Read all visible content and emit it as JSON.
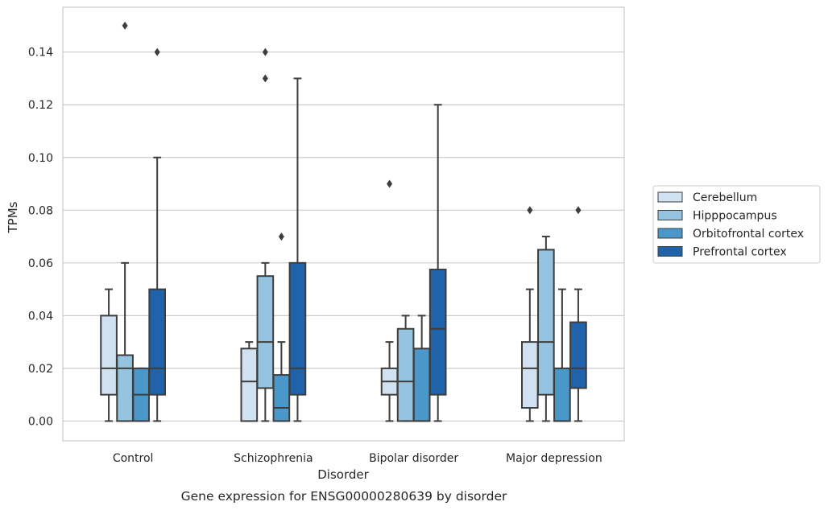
{
  "chart_data": {
    "type": "box",
    "xlabel": "Disorder",
    "ylabel": "TPMs",
    "caption": "Gene expression for ENSG00000280639 by disorder",
    "categories": [
      "Control",
      "Schizophrenia",
      "Bipolar disorder",
      "Major depression"
    ],
    "ylim": [
      -0.0075,
      0.157
    ],
    "yticks": [
      0.0,
      0.02,
      0.04,
      0.06,
      0.08,
      0.1,
      0.12,
      0.14
    ],
    "ytick_labels": [
      "0.00",
      "0.02",
      "0.04",
      "0.06",
      "0.08",
      "0.10",
      "0.12",
      "0.14"
    ],
    "grid": "horizontal",
    "legend_position": "right",
    "series": [
      {
        "name": "Cerebellum",
        "color": "#d0e1f2",
        "boxes": [
          {
            "whislo": 0.0,
            "q1": 0.01,
            "med": 0.02,
            "q3": 0.04,
            "whishi": 0.05,
            "fliers": []
          },
          {
            "whislo": 0.0,
            "q1": 0.0,
            "med": 0.015,
            "q3": 0.0275,
            "whishi": 0.03,
            "fliers": []
          },
          {
            "whislo": 0.0,
            "q1": 0.01,
            "med": 0.015,
            "q3": 0.02,
            "whishi": 0.03,
            "fliers": [
              0.09
            ]
          },
          {
            "whislo": 0.0,
            "q1": 0.005,
            "med": 0.02,
            "q3": 0.03,
            "whishi": 0.05,
            "fliers": [
              0.08
            ]
          }
        ]
      },
      {
        "name": "Hipppocampus",
        "color": "#94c4df",
        "boxes": [
          {
            "whislo": 0.0,
            "q1": 0.0,
            "med": 0.02,
            "q3": 0.025,
            "whishi": 0.06,
            "fliers": [
              0.15
            ]
          },
          {
            "whislo": 0.0,
            "q1": 0.0125,
            "med": 0.03,
            "q3": 0.055,
            "whishi": 0.06,
            "fliers": [
              0.13,
              0.14
            ]
          },
          {
            "whislo": 0.0,
            "q1": 0.0,
            "med": 0.015,
            "q3": 0.035,
            "whishi": 0.04,
            "fliers": []
          },
          {
            "whislo": 0.0,
            "q1": 0.01,
            "med": 0.03,
            "q3": 0.065,
            "whishi": 0.07,
            "fliers": []
          }
        ]
      },
      {
        "name": "Orbitofrontal cortex",
        "color": "#4a98c9",
        "boxes": [
          {
            "whislo": 0.0,
            "q1": 0.0,
            "med": 0.01,
            "q3": 0.02,
            "whishi": 0.02,
            "fliers": []
          },
          {
            "whislo": 0.0,
            "q1": 0.0,
            "med": 0.005,
            "q3": 0.0175,
            "whishi": 0.03,
            "fliers": [
              0.07
            ]
          },
          {
            "whislo": 0.0,
            "q1": 0.0,
            "med": 0.0,
            "q3": 0.0275,
            "whishi": 0.04,
            "fliers": []
          },
          {
            "whislo": 0.0,
            "q1": 0.0,
            "med": 0.0,
            "q3": 0.02,
            "whishi": 0.05,
            "fliers": []
          }
        ]
      },
      {
        "name": "Prefrontal cortex",
        "color": "#2163aa",
        "boxes": [
          {
            "whislo": 0.0,
            "q1": 0.01,
            "med": 0.02,
            "q3": 0.05,
            "whishi": 0.1,
            "fliers": [
              0.14
            ]
          },
          {
            "whislo": 0.0,
            "q1": 0.01,
            "med": 0.02,
            "q3": 0.06,
            "whishi": 0.13,
            "fliers": []
          },
          {
            "whislo": 0.0,
            "q1": 0.01,
            "med": 0.035,
            "q3": 0.0575,
            "whishi": 0.12,
            "fliers": []
          },
          {
            "whislo": 0.0,
            "q1": 0.0125,
            "med": 0.02,
            "q3": 0.0375,
            "whishi": 0.05,
            "fliers": [
              0.08
            ]
          }
        ]
      }
    ]
  }
}
